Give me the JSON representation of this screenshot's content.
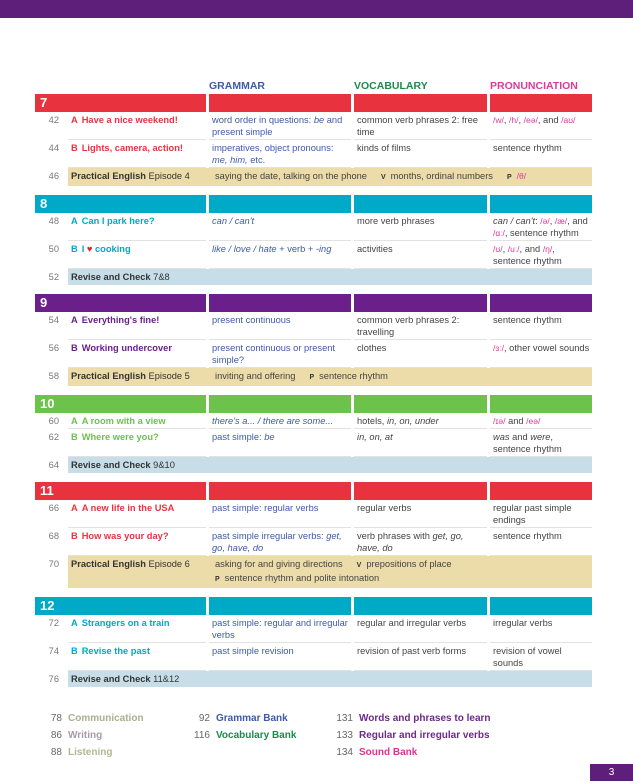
{
  "header": {
    "grammar": "GRAMMAR",
    "vocabulary": "VOCABULARY",
    "pronunciation": "PRONUNCIATION",
    "colors": {
      "grammar": "#3f5aa8",
      "vocabulary": "#1b8a4c",
      "pronunciation": "#e0389a"
    }
  },
  "units": [
    {
      "num": "7",
      "color": "#e8333f",
      "rows": [
        {
          "type": "lesson",
          "page": "42",
          "letter": "A",
          "title": "Have a nice weekend!",
          "grammar": [
            [
              "word order in questions: ",
              ""
            ],
            [
              "be",
              "i"
            ],
            [
              " and present simple",
              ""
            ]
          ],
          "vocabulary": [
            [
              "common verb phrases 2: free time",
              ""
            ]
          ],
          "pronunciation": [
            [
              "/w/",
              "p"
            ],
            [
              ", ",
              ""
            ],
            [
              "/h/",
              "p"
            ],
            [
              ", ",
              ""
            ],
            [
              "/eə/",
              "p"
            ],
            [
              ", and ",
              ""
            ],
            [
              "/aʊ/",
              "p"
            ]
          ]
        },
        {
          "type": "lesson",
          "page": "44",
          "letter": "B",
          "title": "Lights, camera, action!",
          "grammar": [
            [
              "imperatives, object pronouns: ",
              ""
            ],
            [
              "me, him,",
              "i"
            ],
            [
              " etc.",
              ""
            ]
          ],
          "vocabulary": [
            [
              "kinds of films",
              ""
            ]
          ],
          "pronunciation": [
            [
              "sentence rhythm",
              ""
            ]
          ]
        },
        {
          "type": "pe",
          "page": "46",
          "bold": "Practical English",
          "rest": " Episode 4",
          "items": [
            [
              "saying the date, talking on the phone",
              ""
            ],
            [
              "V",
              "tag"
            ],
            [
              "months, ordinal numbers",
              ""
            ],
            [
              "P",
              "tag"
            ],
            [
              "/θ/",
              "p"
            ]
          ]
        }
      ]
    },
    {
      "num": "8",
      "color": "#00a9c8",
      "rows": [
        {
          "type": "lesson",
          "page": "48",
          "letter": "A",
          "title": "Can I park here?",
          "grammar": [
            [
              "can / can't",
              "i"
            ]
          ],
          "vocabulary": [
            [
              "more verb phrases",
              ""
            ]
          ],
          "pronunciation": [
            [
              "can / can't",
              "i"
            ],
            [
              ": ",
              ""
            ],
            [
              "/ə/",
              "p"
            ],
            [
              ", ",
              ""
            ],
            [
              "/æ/",
              "p"
            ],
            [
              ", and ",
              ""
            ],
            [
              "/ɑː/",
              "p"
            ],
            [
              ", sentence rhythm",
              ""
            ]
          ]
        },
        {
          "type": "lesson",
          "page": "50",
          "letter": "B",
          "title": "I ♥ cooking",
          "grammar": [
            [
              "like / love / hate",
              "i"
            ],
            [
              " + verb + ",
              ""
            ],
            [
              "-ing",
              "i"
            ]
          ],
          "vocabulary": [
            [
              "activities",
              ""
            ]
          ],
          "pronunciation": [
            [
              "/ʊ/",
              "p"
            ],
            [
              ", ",
              ""
            ],
            [
              "/uː/",
              "p"
            ],
            [
              ", and ",
              ""
            ],
            [
              "/ŋ/",
              "p"
            ],
            [
              ", sentence rhythm",
              ""
            ]
          ]
        },
        {
          "type": "rc",
          "page": "52",
          "bold": "Revise and Check",
          "rest": " 7&8"
        }
      ]
    },
    {
      "num": "9",
      "color": "#6b1f8a",
      "rows": [
        {
          "type": "lesson",
          "page": "54",
          "letter": "A",
          "title": "Everything's fine!",
          "grammar": [
            [
              "present continuous",
              ""
            ]
          ],
          "vocabulary": [
            [
              "common verb phrases 2: travelling",
              ""
            ]
          ],
          "pronunciation": [
            [
              "sentence rhythm",
              ""
            ]
          ]
        },
        {
          "type": "lesson",
          "page": "56",
          "letter": "B",
          "title": "Working undercover",
          "grammar": [
            [
              "present continuous or present simple?",
              ""
            ]
          ],
          "vocabulary": [
            [
              "clothes",
              ""
            ]
          ],
          "pronunciation": [
            [
              "/ɜː/",
              "p"
            ],
            [
              ", other vowel sounds",
              ""
            ]
          ]
        },
        {
          "type": "pe",
          "page": "58",
          "bold": "Practical English",
          "rest": " Episode 5",
          "items": [
            [
              "inviting and offering",
              ""
            ],
            [
              "P",
              "tag"
            ],
            [
              "sentence rhythm",
              ""
            ]
          ]
        }
      ]
    },
    {
      "num": "10",
      "color": "#6cc24a",
      "rows": [
        {
          "type": "lesson",
          "page": "60",
          "letter": "A",
          "title": "A room with a view",
          "grammar": [
            [
              "there's a... / there are some...",
              "i"
            ]
          ],
          "vocabulary": [
            [
              "hotels, ",
              ""
            ],
            [
              "in, on, under",
              "i"
            ]
          ],
          "pronunciation": [
            [
              "/ɪə/",
              "p"
            ],
            [
              " and ",
              ""
            ],
            [
              "/eə/",
              "p"
            ]
          ]
        },
        {
          "type": "lesson",
          "page": "62",
          "letter": "B",
          "title": "Where were you?",
          "grammar": [
            [
              "past simple: ",
              ""
            ],
            [
              "be",
              "i"
            ]
          ],
          "vocabulary": [
            [
              "in, on, at",
              "i"
            ]
          ],
          "pronunciation": [
            [
              "was",
              "i"
            ],
            [
              " and ",
              ""
            ],
            [
              "were",
              "i"
            ],
            [
              ", sentence rhythm",
              ""
            ]
          ]
        },
        {
          "type": "rc",
          "page": "64",
          "bold": "Revise and Check",
          "rest": " 9&10"
        }
      ]
    },
    {
      "num": "11",
      "color": "#e8333f",
      "rows": [
        {
          "type": "lesson",
          "page": "66",
          "letter": "A",
          "title": "A new life in the USA",
          "grammar": [
            [
              "past simple: regular verbs",
              ""
            ]
          ],
          "vocabulary": [
            [
              "regular verbs",
              ""
            ]
          ],
          "pronunciation": [
            [
              "regular past simple endings",
              ""
            ]
          ]
        },
        {
          "type": "lesson",
          "page": "68",
          "letter": "B",
          "title": "How was your day?",
          "grammar": [
            [
              "past simple irregular verbs: ",
              ""
            ],
            [
              "get, go, have, do",
              "i"
            ]
          ],
          "vocabulary": [
            [
              "verb phrases with ",
              ""
            ],
            [
              "get, go, have, do",
              "i"
            ]
          ],
          "pronunciation": [
            [
              "sentence rhythm",
              ""
            ]
          ]
        },
        {
          "type": "pe",
          "page": "70",
          "bold": "Practical English",
          "rest": " Episode 6",
          "items": [
            [
              "asking for and giving directions",
              ""
            ],
            [
              "V",
              "tag"
            ],
            [
              "prepositions of place",
              ""
            ],
            [
              "\n",
              "br"
            ],
            [
              "P",
              "tag0"
            ],
            [
              "sentence rhythm and polite intonation",
              ""
            ]
          ]
        }
      ]
    },
    {
      "num": "12",
      "color": "#00a9c8",
      "rows": [
        {
          "type": "lesson",
          "page": "72",
          "letter": "A",
          "title": "Strangers on a train",
          "grammar": [
            [
              "past simple: regular and irregular verbs",
              ""
            ]
          ],
          "vocabulary": [
            [
              "regular and irregular verbs",
              ""
            ]
          ],
          "pronunciation": [
            [
              "irregular verbs",
              ""
            ]
          ]
        },
        {
          "type": "lesson",
          "page": "74",
          "letter": "B",
          "title": "Revise the past",
          "grammar": [
            [
              "past simple revision",
              ""
            ]
          ],
          "vocabulary": [
            [
              "revision of past verb forms",
              ""
            ]
          ],
          "pronunciation": [
            [
              "revision of vowel sounds",
              ""
            ]
          ]
        },
        {
          "type": "rc",
          "page": "76",
          "bold": "Revise and Check",
          "rest": " 11&12"
        }
      ]
    }
  ],
  "back_sections": [
    [
      {
        "page": "78",
        "label": "Communication",
        "color": "#a9b08e"
      },
      {
        "page": "86",
        "label": "Writing",
        "color": "#a99aa8"
      },
      {
        "page": "88",
        "label": "Listening",
        "color": "#b1b78f"
      }
    ],
    [
      {
        "page": "92",
        "label": "Grammar Bank",
        "color": "#3f5aa8"
      },
      {
        "page": "116",
        "label": "Vocabulary Bank",
        "color": "#1b8a4c"
      }
    ],
    [
      {
        "page": "131",
        "label": "Words and phrases to learn",
        "color": "#6b2a8a"
      },
      {
        "page": "133",
        "label": "Regular and irregular verbs",
        "color": "#6b2a8a"
      },
      {
        "page": "134",
        "label": "Sound Bank",
        "color": "#e0338f"
      }
    ]
  ],
  "page_number": "3",
  "brand_color": "#5e1f7a"
}
